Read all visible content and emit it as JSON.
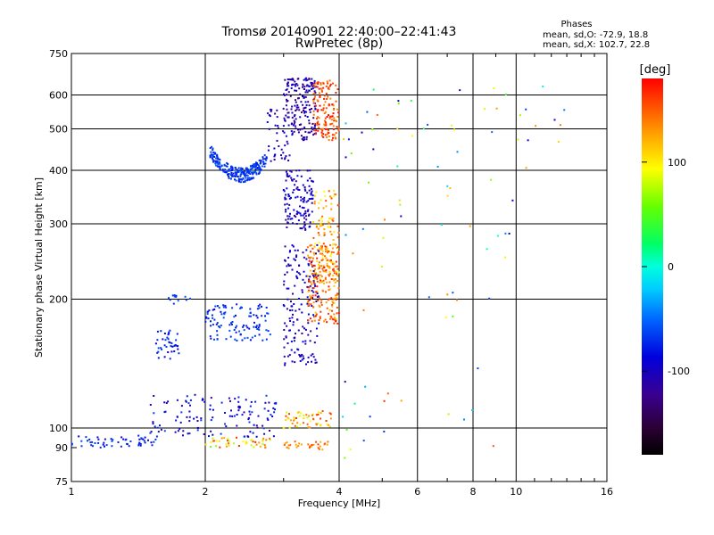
{
  "chart_data": {
    "type": "scatter",
    "title": "Tromsø 20140901 22:40:00–22:41:43",
    "subtitle": "RwPretec (8p)",
    "stats": {
      "heading": "Phases",
      "line1": "mean, sd,O: -72.9, 18.8",
      "line2": "mean, sd,X: 102.7, 22.8"
    },
    "xlabel": "Frequency [MHz]",
    "ylabel": "Stationary phase Virtual Height [km]",
    "x_scale": "log",
    "y_scale": "log",
    "xlim": [
      1,
      16
    ],
    "ylim": [
      75,
      750
    ],
    "x_ticks": [
      1,
      2,
      4,
      6,
      8,
      10,
      16
    ],
    "x_tick_labels": [
      "1",
      "2",
      "4",
      "6",
      "8",
      "10",
      "16"
    ],
    "y_ticks": [
      75,
      90,
      100,
      200,
      300,
      400,
      500,
      600,
      750
    ],
    "y_tick_labels": [
      "75",
      "90",
      "100",
      "200",
      "300",
      "400",
      "500",
      "600",
      "750"
    ],
    "grid": true,
    "colorbar": {
      "label": "[deg]",
      "range": [
        -180,
        180
      ],
      "ticks": [
        100,
        0,
        -100
      ],
      "tick_labels": [
        "100",
        "0",
        "-100"
      ]
    },
    "clusters": [
      {
        "name": "e_trace_low",
        "x_range": [
          1.0,
          1.55
        ],
        "y_range": [
          90,
          96
        ],
        "n": 55,
        "phase": [
          -90,
          -60
        ]
      },
      {
        "name": "e_trace_mid",
        "x_range": [
          1.5,
          2.9
        ],
        "y_range": [
          95,
          120
        ],
        "n": 130,
        "phase": [
          -120,
          -60
        ]
      },
      {
        "name": "e_o_low",
        "x_range": [
          2.0,
          2.8
        ],
        "y_range": [
          90,
          95
        ],
        "n": 45,
        "phase": [
          40,
          170
        ]
      },
      {
        "name": "es_x_cluster",
        "x_range": [
          3.0,
          3.9
        ],
        "y_range": [
          100,
          110
        ],
        "n": 55,
        "phase": [
          80,
          170
        ]
      },
      {
        "name": "es_o_low",
        "x_range": [
          3.0,
          3.8
        ],
        "y_range": [
          89,
          93
        ],
        "n": 30,
        "phase": [
          120,
          160
        ]
      },
      {
        "name": "f1_lower",
        "x_range": [
          1.55,
          1.75
        ],
        "y_range": [
          145,
          170
        ],
        "n": 40,
        "phase": [
          -90,
          -60
        ]
      },
      {
        "name": "f1_blob",
        "x_range": [
          2.0,
          2.8
        ],
        "y_range": [
          160,
          195
        ],
        "n": 110,
        "phase": [
          -85,
          -55
        ]
      },
      {
        "name": "f1_upper",
        "x_range": [
          1.65,
          1.85
        ],
        "y_range": [
          195,
          205
        ],
        "n": 12,
        "phase": [
          -80,
          -50
        ]
      },
      {
        "name": "f2_cusp",
        "x_range": [
          2.05,
          2.75
        ],
        "y_range": [
          380,
          440
        ],
        "n": 240,
        "phase": [
          -80,
          -55
        ]
      },
      {
        "name": "f2_rise",
        "x_range": [
          2.75,
          3.1
        ],
        "y_range": [
          420,
          560
        ],
        "n": 45,
        "phase": [
          -120,
          -90
        ]
      },
      {
        "name": "f2_o_top",
        "x_range": [
          3.0,
          3.55
        ],
        "y_range": [
          470,
          660
        ],
        "n": 180,
        "phase": [
          -130,
          -90
        ]
      },
      {
        "name": "f2_x_top",
        "x_range": [
          3.5,
          4.0
        ],
        "y_range": [
          470,
          650
        ],
        "n": 140,
        "phase": [
          130,
          180
        ]
      },
      {
        "name": "f_mid_o",
        "x_range": [
          3.0,
          3.5
        ],
        "y_range": [
          290,
          400
        ],
        "n": 130,
        "phase": [
          -120,
          -80
        ]
      },
      {
        "name": "f_mid_x",
        "x_range": [
          3.5,
          4.0
        ],
        "y_range": [
          220,
          360
        ],
        "n": 130,
        "phase": [
          90,
          160
        ]
      },
      {
        "name": "f_low_o",
        "x_range": [
          3.0,
          3.6
        ],
        "y_range": [
          140,
          270
        ],
        "n": 170,
        "phase": [
          -120,
          -80
        ]
      },
      {
        "name": "f_low_x",
        "x_range": [
          3.4,
          4.0
        ],
        "y_range": [
          175,
          270
        ],
        "n": 180,
        "phase": [
          110,
          175
        ]
      },
      {
        "name": "sparse_high",
        "x_range": [
          4.0,
          13.0
        ],
        "y_range": [
          400,
          650
        ],
        "n": 40,
        "phase": [
          -110,
          150
        ]
      },
      {
        "name": "sparse_mid",
        "x_range": [
          4.0,
          10.0
        ],
        "y_range": [
          170,
          400
        ],
        "n": 30,
        "phase": [
          -100,
          160
        ]
      },
      {
        "name": "sparse_low",
        "x_range": [
          4.0,
          9.0
        ],
        "y_range": [
          85,
          150
        ],
        "n": 18,
        "phase": [
          -110,
          170
        ]
      }
    ]
  }
}
